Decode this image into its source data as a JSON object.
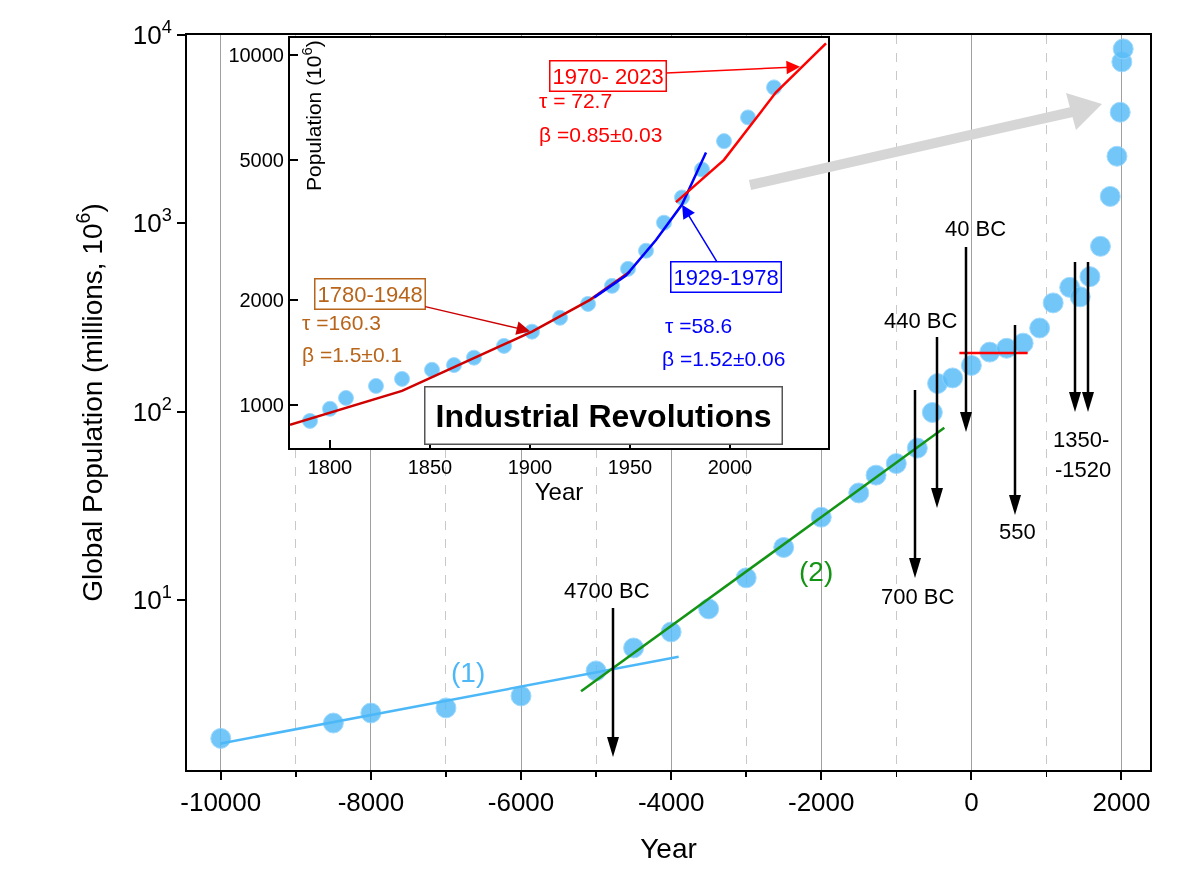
{
  "chart_data": [
    {
      "type": "scatter",
      "xlabel": "Year",
      "ylabel": "Global Population (millions, 10$^{6}$)",
      "log": "y",
      "grid": "x",
      "xlim": [
        -10450,
        2380
      ],
      "ylim": [
        1.25,
        10000
      ],
      "xticks": [
        -10000,
        {
          "value": -9000,
          "label": null
        },
        -8000,
        {
          "value": -7000,
          "label": null
        },
        -6000,
        {
          "value": -5000,
          "label": null
        },
        -4000,
        {
          "value": -3000,
          "label": null
        },
        -2000,
        {
          "value": -1000,
          "label": null
        },
        0,
        {
          "value": 1000,
          "label": null
        },
        2000
      ],
      "yticks": [
        {
          "value": 10,
          "label": "10$^{1}$"
        },
        {
          "value": 100,
          "label": "10$^{2}$"
        },
        {
          "value": 1000,
          "label": "10$^{3}$"
        },
        {
          "value": 10000,
          "label": "10$^{4}$"
        }
      ],
      "series": [
        {
          "color": "#5bbdf7",
          "x": [
            -10000,
            -8500,
            -8000,
            -7000,
            -6000,
            -5000,
            -4500,
            -4000,
            -3500,
            -3000,
            -2500,
            -2000,
            -1500,
            -1270,
            -1000,
            -720,
            -520,
            -450,
            -250,
            0,
            245,
            470,
            690,
            910,
            1090,
            1310,
            1450,
            1580,
            1720,
            1850,
            1940,
            1983,
            2005,
            2023
          ],
          "values": [
            1.84,
            2.22,
            2.51,
            2.67,
            3.09,
            4.2,
            5.56,
            6.76,
            8.96,
            13.1,
            19,
            27.5,
            37,
            46,
            53,
            64,
            99,
            141,
            151,
            176,
            207,
            217,
            231,
            278,
            378,
            457,
            407,
            521,
            755,
            1390,
            2270,
            3890,
            7200,
            8440
          ]
        },
        {
          "type": "line",
          "name": "(1)",
          "color": "#4db8f7",
          "x": [
            -10000,
            -3900
          ],
          "values": [
            1.73,
            4.99
          ]
        },
        {
          "type": "line",
          "name": "(2)",
          "color": "#149414",
          "x": [
            -5200,
            -360
          ],
          "values": [
            3.27,
            82
          ]
        },
        {
          "type": "line",
          "color": "#ff0000",
          "x": [
            -160,
            750
          ],
          "values": [
            205,
            205
          ]
        }
      ],
      "annotations": [
        "4700 BC",
        "700 BC",
        "440 BC",
        "40 BC",
        "550",
        "1350-",
        "-1520"
      ]
    },
    {
      "type": "scatter",
      "xlabel": "Year",
      "ylabel": "Population (10$^{6}$)",
      "log": true,
      "xlim": [
        1780,
        2049
      ],
      "ylim": [
        753,
        11200
      ],
      "xticks": [
        1800,
        1850,
        1900,
        1950,
        2000
      ],
      "yticks": [
        1000,
        2000,
        5000,
        10000
      ],
      "series": [
        {
          "color": "#5bbdf7",
          "x": [
            1790,
            1800,
            1808,
            1823,
            1836,
            1851,
            1862,
            1872,
            1887,
            1901,
            1915,
            1929,
            1941,
            1949,
            1958,
            1967,
            1976,
            1986,
            1997,
            2009,
            2022
          ],
          "values": [
            900,
            975,
            1047,
            1133,
            1187,
            1260,
            1300,
            1365,
            1475,
            1620,
            1775,
            1945,
            2190,
            2450,
            2760,
            3320,
            3920,
            4710,
            5680,
            6640,
            8090
          ]
        },
        {
          "type": "line",
          "color": "#d00000",
          "x": [
            1780,
            1836,
            1901,
            1930,
            1950
          ],
          "values": [
            877,
            1097,
            1620,
            1997,
            2405
          ]
        },
        {
          "type": "line",
          "color": "#0000ff",
          "x": [
            1932,
            1948,
            1963,
            1976,
            1988
          ],
          "values": [
            2027,
            2345,
            2960,
            3740,
            5270
          ]
        },
        {
          "type": "line",
          "color": "#ff0000",
          "x": [
            1973,
            1997,
            2023,
            2048
          ],
          "values": [
            3800,
            5020,
            7830,
            10810
          ]
        }
      ],
      "annotations": [
        {
          "text": "1780-1948",
          "x": 1901,
          "y": 1620
        },
        "τ =160.3",
        "β =1.5±0.1",
        {
          "text": "1970- 2023",
          "x": 2036,
          "y": 9270
        },
        "τ = 72.7",
        "β =0.85±0.03",
        {
          "text": "1929-1978",
          "x": 1976,
          "y": 3740
        },
        "τ =58.6",
        "β =1.52±0.06",
        "Industrial Revolutions"
      ]
    }
  ]
}
